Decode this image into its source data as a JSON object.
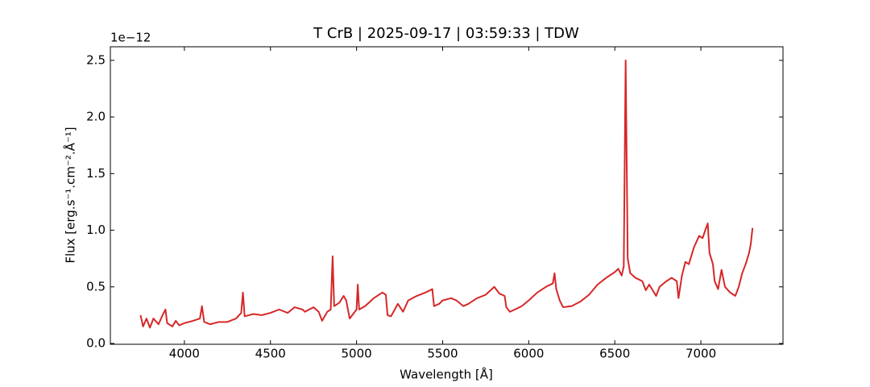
{
  "chart_data": {
    "type": "line",
    "title": "T CrB | 2025-09-17 | 03:59:33 | TDW",
    "xlabel": "Wavelength [Å]",
    "ylabel": "Flux [erg.s⁻¹.cm⁻².Å⁻¹]",
    "y_offset_text": "1e−12",
    "color": "#d62728",
    "xlim": [
      3570,
      7477
    ],
    "ylim": [
      -0.007,
      2.62
    ],
    "xticks": [
      4000,
      4500,
      5000,
      5500,
      6000,
      6500,
      7000
    ],
    "yticks": [
      {
        "value": 0,
        "label": "0.0"
      },
      0.5,
      {
        "value": 1,
        "label": "1.0"
      },
      1.5,
      {
        "value": 2,
        "label": "2.0"
      },
      2.5
    ],
    "x": [
      3745,
      3760,
      3780,
      3800,
      3820,
      3850,
      3870,
      3890,
      3900,
      3930,
      3950,
      3970,
      4000,
      4050,
      4090,
      4102,
      4115,
      4150,
      4200,
      4250,
      4300,
      4330,
      4340,
      4350,
      4400,
      4450,
      4500,
      4550,
      4600,
      4640,
      4686,
      4700,
      4750,
      4780,
      4800,
      4830,
      4850,
      4861,
      4870,
      4900,
      4925,
      4940,
      4960,
      5000,
      5007,
      5015,
      5050,
      5100,
      5150,
      5170,
      5180,
      5200,
      5240,
      5270,
      5300,
      5350,
      5400,
      5440,
      5450,
      5480,
      5500,
      5550,
      5580,
      5620,
      5650,
      5700,
      5750,
      5800,
      5830,
      5860,
      5870,
      5890,
      5920,
      5960,
      6000,
      6050,
      6100,
      6140,
      6150,
      6160,
      6180,
      6200,
      6250,
      6300,
      6350,
      6400,
      6450,
      6500,
      6520,
      6540,
      6552,
      6563,
      6575,
      6590,
      6620,
      6660,
      6680,
      6700,
      6740,
      6760,
      6800,
      6830,
      6860,
      6870,
      6890,
      6910,
      6930,
      6960,
      6990,
      7010,
      7030,
      7040,
      7050,
      7070,
      7080,
      7100,
      7120,
      7140,
      7170,
      7200,
      7220,
      7240,
      7260,
      7280,
      7290,
      7300
    ],
    "values": [
      0.25,
      0.15,
      0.22,
      0.14,
      0.22,
      0.17,
      0.24,
      0.3,
      0.18,
      0.15,
      0.2,
      0.16,
      0.18,
      0.2,
      0.22,
      0.33,
      0.19,
      0.17,
      0.19,
      0.19,
      0.22,
      0.27,
      0.45,
      0.24,
      0.26,
      0.25,
      0.27,
      0.3,
      0.27,
      0.32,
      0.3,
      0.28,
      0.32,
      0.28,
      0.2,
      0.28,
      0.3,
      0.77,
      0.33,
      0.36,
      0.42,
      0.38,
      0.22,
      0.3,
      0.52,
      0.3,
      0.33,
      0.4,
      0.45,
      0.43,
      0.25,
      0.24,
      0.35,
      0.28,
      0.38,
      0.42,
      0.45,
      0.48,
      0.33,
      0.35,
      0.38,
      0.4,
      0.38,
      0.33,
      0.35,
      0.4,
      0.43,
      0.5,
      0.44,
      0.42,
      0.32,
      0.28,
      0.3,
      0.33,
      0.38,
      0.45,
      0.5,
      0.53,
      0.62,
      0.48,
      0.38,
      0.32,
      0.33,
      0.37,
      0.43,
      0.52,
      0.58,
      0.63,
      0.66,
      0.6,
      0.68,
      2.5,
      0.75,
      0.62,
      0.58,
      0.55,
      0.47,
      0.52,
      0.42,
      0.5,
      0.55,
      0.58,
      0.55,
      0.4,
      0.6,
      0.72,
      0.7,
      0.85,
      0.95,
      0.93,
      1.02,
      1.06,
      0.8,
      0.7,
      0.55,
      0.48,
      0.65,
      0.5,
      0.45,
      0.42,
      0.5,
      0.62,
      0.7,
      0.8,
      0.88,
      1.02
    ]
  }
}
